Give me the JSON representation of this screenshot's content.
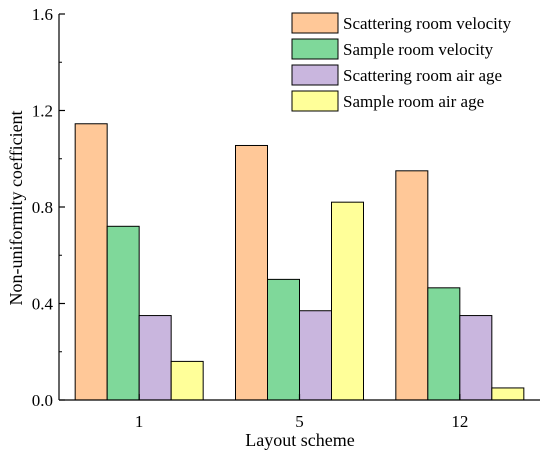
{
  "chart_data": {
    "type": "bar",
    "title": "",
    "xlabel": "Layout scheme",
    "ylabel": "Non-uniformity coefficient",
    "categories": [
      "1",
      "5",
      "12"
    ],
    "ylim": [
      0.0,
      1.6
    ],
    "yticks": [
      "0.0",
      "0.4",
      "0.8",
      "1.2",
      "1.6"
    ],
    "grid": false,
    "legend_position": "top-right",
    "series": [
      {
        "name": "Scattering room velocity",
        "color": "#FFC898",
        "values": [
          1.145,
          1.055,
          0.95
        ]
      },
      {
        "name": "Sample room velocity",
        "color": "#7FD89A",
        "values": [
          0.72,
          0.5,
          0.465
        ]
      },
      {
        "name": "Scattering room air age",
        "color": "#C9B6DE",
        "values": [
          0.35,
          0.37,
          0.35
        ]
      },
      {
        "name": "Sample room air age",
        "color": "#FFFF99",
        "values": [
          0.16,
          0.82,
          0.05
        ]
      }
    ]
  }
}
